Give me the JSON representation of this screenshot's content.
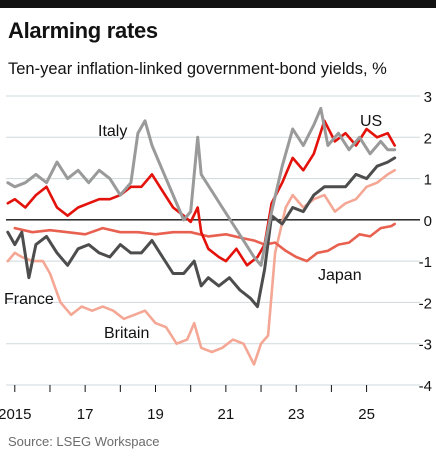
{
  "title": "Alarming rates",
  "subtitle": "Ten-year inflation-linked government-bond yields, %",
  "source": "Source: LSEG Workspace",
  "chart_data": {
    "type": "line",
    "title": "Alarming rates",
    "subtitle": "Ten-year inflation-linked government-bond yields, %",
    "ylim": [
      -4,
      3
    ],
    "yticks": [
      3,
      2,
      1,
      0,
      -1,
      -2,
      -3,
      -4
    ],
    "xlim": [
      2014.75,
      2025.95
    ],
    "xticks": [
      {
        "value": 2015,
        "label": "2015"
      },
      {
        "value": 2017,
        "label": "17"
      },
      {
        "value": 2019,
        "label": "19"
      },
      {
        "value": 2021,
        "label": "21"
      },
      {
        "value": 2023,
        "label": "23"
      },
      {
        "value": 2025,
        "label": "25"
      }
    ],
    "grid": true,
    "legend": "direct labels",
    "colors": {
      "US": "#e3120b",
      "Italy": "#9a9a9a",
      "France": "#4d4d4d",
      "Japan": "#e8604f",
      "Britain": "#f4a795"
    },
    "series": [
      {
        "name": "US",
        "x": [
          2014.8,
          2015.0,
          2015.3,
          2015.6,
          2015.9,
          2016.2,
          2016.5,
          2016.8,
          2017.1,
          2017.4,
          2017.7,
          2018.0,
          2018.3,
          2018.6,
          2018.9,
          2019.2,
          2019.5,
          2019.8,
          2020.0,
          2020.2,
          2020.3,
          2020.5,
          2020.8,
          2021.0,
          2021.3,
          2021.6,
          2021.9,
          2022.1,
          2022.3,
          2022.6,
          2022.9,
          2023.2,
          2023.5,
          2023.8,
          2024.1,
          2024.4,
          2024.7,
          2025.0,
          2025.3,
          2025.6,
          2025.8
        ],
        "values": [
          0.4,
          0.5,
          0.3,
          0.6,
          0.8,
          0.3,
          0.1,
          0.3,
          0.4,
          0.5,
          0.5,
          0.6,
          0.8,
          0.8,
          1.1,
          0.7,
          0.3,
          0.1,
          -0.05,
          0.3,
          -0.3,
          -0.7,
          -0.9,
          -1.0,
          -0.7,
          -1.1,
          -0.9,
          -0.6,
          0.4,
          0.9,
          1.5,
          1.2,
          1.6,
          2.4,
          1.9,
          2.1,
          1.8,
          2.2,
          2.0,
          2.1,
          1.8
        ]
      },
      {
        "name": "Italy",
        "x": [
          2014.8,
          2015.0,
          2015.3,
          2015.6,
          2015.9,
          2016.2,
          2016.5,
          2016.8,
          2017.1,
          2017.4,
          2017.7,
          2018.0,
          2018.3,
          2018.5,
          2018.7,
          2018.9,
          2019.2,
          2019.5,
          2019.8,
          2020.0,
          2020.2,
          2020.3,
          2020.6,
          2020.9,
          2021.2,
          2021.5,
          2021.8,
          2022.0,
          2022.3,
          2022.6,
          2022.9,
          2023.2,
          2023.5,
          2023.7,
          2023.9,
          2024.2,
          2024.5,
          2024.8,
          2025.1,
          2025.4,
          2025.6,
          2025.8
        ],
        "values": [
          0.9,
          0.8,
          0.9,
          1.1,
          0.9,
          1.4,
          1.0,
          1.2,
          0.9,
          1.2,
          1.0,
          0.6,
          0.9,
          2.1,
          2.4,
          1.8,
          1.2,
          0.6,
          0.0,
          0.2,
          2.0,
          1.1,
          0.7,
          0.3,
          -0.1,
          -0.5,
          -0.9,
          -1.1,
          0.2,
          1.3,
          2.2,
          1.8,
          2.3,
          2.7,
          1.8,
          2.1,
          1.7,
          2.0,
          1.6,
          1.9,
          1.7,
          1.7
        ]
      },
      {
        "name": "France",
        "x": [
          2014.8,
          2015.0,
          2015.2,
          2015.4,
          2015.6,
          2015.9,
          2016.2,
          2016.5,
          2016.8,
          2017.1,
          2017.4,
          2017.7,
          2018.0,
          2018.3,
          2018.6,
          2018.9,
          2019.2,
          2019.5,
          2019.8,
          2020.1,
          2020.3,
          2020.5,
          2020.8,
          2021.1,
          2021.4,
          2021.7,
          2021.9,
          2022.1,
          2022.3,
          2022.6,
          2022.9,
          2023.2,
          2023.5,
          2023.8,
          2024.1,
          2024.4,
          2024.7,
          2025.0,
          2025.3,
          2025.6,
          2025.8
        ],
        "values": [
          -0.3,
          -0.6,
          -0.3,
          -1.4,
          -0.6,
          -0.4,
          -0.8,
          -1.1,
          -0.7,
          -0.6,
          -0.8,
          -0.9,
          -0.6,
          -0.8,
          -0.8,
          -0.5,
          -0.9,
          -1.3,
          -1.3,
          -1.0,
          -1.6,
          -1.4,
          -1.6,
          -1.4,
          -1.7,
          -1.9,
          -2.1,
          -1.2,
          0.1,
          -0.1,
          0.3,
          0.2,
          0.6,
          0.8,
          0.8,
          0.8,
          1.1,
          1.0,
          1.3,
          1.4,
          1.5
        ]
      },
      {
        "name": "Japan",
        "x": [
          2015.0,
          2015.5,
          2016.0,
          2016.5,
          2017.0,
          2017.5,
          2018.0,
          2018.5,
          2019.0,
          2019.5,
          2020.0,
          2020.5,
          2021.0,
          2021.5,
          2021.8,
          2022.1,
          2022.4,
          2022.7,
          2023.0,
          2023.3,
          2023.6,
          2023.9,
          2024.2,
          2024.5,
          2024.8,
          2025.1,
          2025.4,
          2025.7,
          2025.8
        ],
        "values": [
          -0.2,
          -0.3,
          -0.25,
          -0.3,
          -0.35,
          -0.2,
          -0.3,
          -0.3,
          -0.35,
          -0.3,
          -0.3,
          -0.4,
          -0.35,
          -0.45,
          -0.5,
          -0.6,
          -0.55,
          -0.75,
          -0.9,
          -1.0,
          -0.8,
          -0.75,
          -0.6,
          -0.55,
          -0.35,
          -0.4,
          -0.2,
          -0.15,
          -0.1
        ]
      },
      {
        "name": "Britain",
        "x": [
          2014.8,
          2015.0,
          2015.2,
          2015.5,
          2015.8,
          2016.0,
          2016.3,
          2016.6,
          2016.9,
          2017.2,
          2017.5,
          2017.8,
          2018.1,
          2018.4,
          2018.7,
          2019.0,
          2019.3,
          2019.6,
          2019.9,
          2020.1,
          2020.3,
          2020.6,
          2020.9,
          2021.2,
          2021.5,
          2021.8,
          2022.0,
          2022.2,
          2022.4,
          2022.7,
          2022.9,
          2023.2,
          2023.5,
          2023.8,
          2024.1,
          2024.4,
          2024.7,
          2025.0,
          2025.3,
          2025.6,
          2025.8
        ],
        "values": [
          -1.0,
          -0.8,
          -0.9,
          -1.0,
          -1.0,
          -1.3,
          -2.0,
          -2.3,
          -2.1,
          -2.2,
          -2.1,
          -2.2,
          -2.4,
          -2.3,
          -2.2,
          -2.5,
          -2.6,
          -3.0,
          -2.9,
          -2.5,
          -3.1,
          -3.2,
          -3.1,
          -2.9,
          -3.0,
          -3.5,
          -3.0,
          -2.8,
          -0.8,
          0.3,
          0.6,
          0.3,
          0.5,
          0.6,
          0.2,
          0.4,
          0.5,
          0.8,
          0.9,
          1.1,
          1.2
        ]
      }
    ],
    "labels": [
      {
        "series": "US",
        "text": "US"
      },
      {
        "series": "Italy",
        "text": "Italy"
      },
      {
        "series": "France",
        "text": "France"
      },
      {
        "series": "Japan",
        "text": "Japan"
      },
      {
        "series": "Britain",
        "text": "Britain"
      }
    ]
  }
}
